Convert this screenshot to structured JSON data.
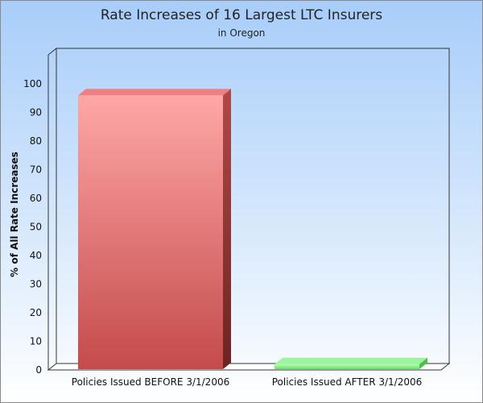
{
  "chart_data": {
    "type": "bar",
    "title": "Rate Increases of 16 Largest LTC Insurers",
    "subtitle": "in Oregon",
    "xlabel": "",
    "ylabel": "% of All Rate Increases",
    "categories": [
      "Policies Issued BEFORE 3/1/2006",
      "Policies Issued AFTER 3/1/2006"
    ],
    "values": [
      96,
      2
    ],
    "ylim": [
      0,
      100
    ],
    "yticks": [
      "0",
      "10",
      "20",
      "30",
      "40",
      "50",
      "60",
      "70",
      "80",
      "90",
      "100"
    ],
    "grid": false,
    "legend": "none"
  },
  "colors": {
    "background_top": "#a8cdfa",
    "background_bottom": "#ffffff",
    "bar_before": "#e86a6a",
    "bar_after": "#8ef08e"
  }
}
